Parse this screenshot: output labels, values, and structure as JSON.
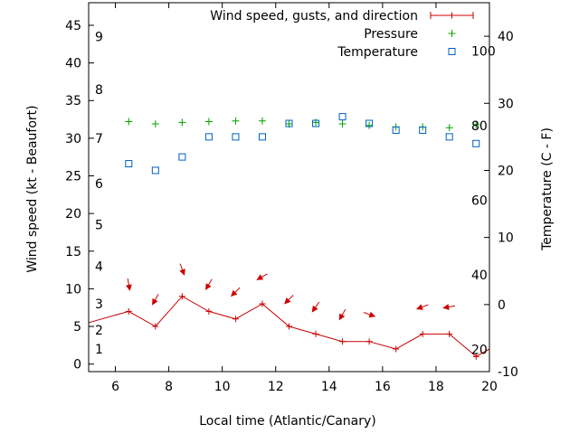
{
  "chart_data": {
    "type": "line",
    "xlabel": "Local time (Atlantic/Canary)",
    "ylabel_left": "Wind speed (kt - Beaufort)",
    "ylabel_right": "Temperature (C - F)",
    "xlim": [
      5,
      20
    ],
    "ylim_left": [
      -1,
      48
    ],
    "ylim_right": [
      -10,
      45
    ],
    "x_ticks": [
      "6",
      "8",
      "10",
      "12",
      "14",
      "16",
      "18",
      "20"
    ],
    "y_ticks_left": [
      "0",
      "5",
      "10",
      "15",
      "20",
      "25",
      "30",
      "35",
      "40",
      "45"
    ],
    "y_ticks_right": [
      "-10",
      "0",
      "10",
      "20",
      "30",
      "40"
    ],
    "beaufort_labels": [
      "1",
      "2",
      "3",
      "4",
      "5",
      "6",
      "7",
      "8",
      "9"
    ],
    "fahrenheit_labels": [
      "20",
      "40",
      "60",
      "80",
      "100"
    ],
    "legend_position": "top-right",
    "series": [
      {
        "name": "Wind speed, gusts, and direction",
        "color": "#cc0000",
        "x": [
          4.5,
          6.5,
          7.5,
          8.5,
          9.5,
          10.5,
          11.5,
          12.5,
          13.5,
          14.5,
          15.5,
          16.5,
          17.5,
          18.5,
          19.5,
          20.5
        ],
        "y": [
          5,
          7,
          5,
          9,
          7,
          6,
          8,
          5,
          4,
          3,
          3,
          2,
          4,
          4,
          1,
          3
        ],
        "direction_deg": [
          null,
          350,
          30,
          340,
          30,
          45,
          60,
          45,
          35,
          30,
          290,
          null,
          70,
          80,
          null,
          50
        ]
      },
      {
        "name": "Pressure",
        "color": "#00a000",
        "x": [
          6.5,
          7.5,
          8.5,
          9.5,
          10.5,
          11.5,
          12.5,
          13.5,
          14.5,
          15.5,
          16.5,
          17.5,
          18.5,
          19.5
        ],
        "y": [
          32.2,
          31.9,
          32.1,
          32.2,
          32.3,
          32.3,
          31.9,
          32.1,
          31.9,
          31.7,
          31.5,
          31.5,
          31.4,
          31.8
        ]
      },
      {
        "name": "Temperature",
        "color": "#0060c0",
        "x": [
          6.5,
          7.5,
          8.5,
          9.5,
          10.5,
          11.5,
          12.5,
          13.5,
          14.5,
          15.5,
          16.5,
          17.5,
          18.5,
          19.5
        ],
        "y": [
          21,
          20,
          22,
          25,
          25,
          25,
          27,
          27,
          28,
          27,
          26,
          26,
          25,
          24
        ]
      }
    ]
  }
}
